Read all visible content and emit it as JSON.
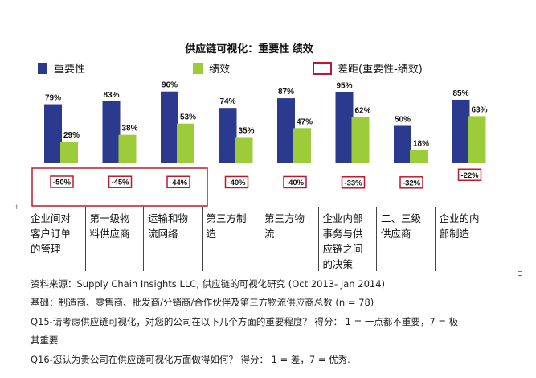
{
  "chart_data": {
    "type": "bar",
    "title": "供应链可视化：重要性 绩效",
    "categories": [
      "企业间对客户订单的管理",
      "第一级物料供应商",
      "运输和物流网络",
      "第三方制造",
      "第三方物流",
      "企业内部事务与供应链之间的决策",
      "二、三级供应商",
      "企业的内部制造"
    ],
    "category_lines": [
      [
        "企业间对",
        "客户订单",
        "的管理"
      ],
      [
        "第一级物",
        "料供应商"
      ],
      [
        "运输和物",
        "流网络"
      ],
      [
        "第三方制",
        "造"
      ],
      [
        "第三方物",
        "流"
      ],
      [
        "企业内部",
        "事务与供",
        "应链之间",
        "的决策"
      ],
      [
        "二、三级",
        "供应商"
      ],
      [
        "企业的内",
        "部制造"
      ]
    ],
    "series": [
      {
        "name": "重要性",
        "color": "#2b3a8f",
        "values": [
          79,
          83,
          96,
          74,
          87,
          95,
          50,
          85
        ]
      },
      {
        "name": "绩效",
        "color": "#9ccc3a",
        "values": [
          29,
          38,
          53,
          35,
          47,
          62,
          18,
          63
        ]
      }
    ],
    "gap": {
      "name": "差距(重要性-绩效)",
      "color": "#c0182b",
      "values": [
        -50,
        -45,
        -44,
        -40,
        -40,
        -33,
        -32,
        -22
      ]
    },
    "value_suffix": "%",
    "ylim": [
      0,
      100
    ],
    "legend": "top"
  },
  "footer": {
    "source": "资料来源：Supply Chain Insights LLC, 供应链的可视化研究  (Oct 2013- Jan 2014)",
    "base": "基础：制造商、零售商、批发商/分销商/合作伙伴及第三方物流供应商总数    (n = 78)",
    "q15_line1": "Q15-请考虑供应链可视化，对您的公司在以下几个方面的重要程度？ 得分：   1 = 一点都不重要，7 =  极",
    "q15_line2": "其重要",
    "q16": "Q16-您认为贵公司在供应链可视化方面做得如何？ 得分：   1 = 差，7 = 优秀."
  }
}
